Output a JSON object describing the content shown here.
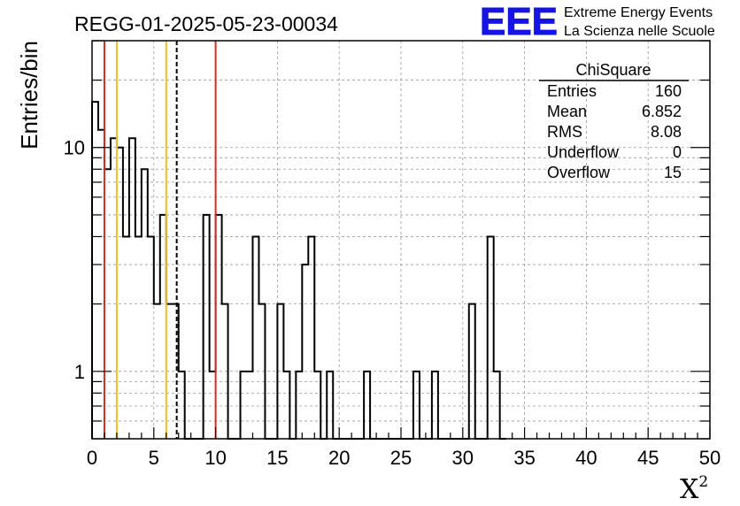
{
  "chart_data": {
    "type": "histogram",
    "title": "REGG-01-2025-05-23-00034",
    "xlabel": "X",
    "xlabel_superscript": "2",
    "ylabel": "Entries/bin",
    "xlim": [
      0,
      50
    ],
    "ylim": [
      0.5,
      30
    ],
    "y_scale": "log",
    "grid": true,
    "bin_width": 0.5,
    "x_ticks": [
      "0",
      "5",
      "10",
      "15",
      "20",
      "25",
      "30",
      "35",
      "40",
      "45",
      "50"
    ],
    "y_ticks": [
      {
        "value": 1,
        "label": "1"
      },
      {
        "value": 10,
        "label": "10"
      }
    ],
    "bins": [
      {
        "x": 0.0,
        "count": 16
      },
      {
        "x": 0.5,
        "count": 12
      },
      {
        "x": 1.0,
        "count": 8
      },
      {
        "x": 1.5,
        "count": 11
      },
      {
        "x": 2.0,
        "count": 10
      },
      {
        "x": 2.5,
        "count": 4
      },
      {
        "x": 3.0,
        "count": 11
      },
      {
        "x": 3.5,
        "count": 4
      },
      {
        "x": 4.0,
        "count": 8
      },
      {
        "x": 4.5,
        "count": 4
      },
      {
        "x": 5.0,
        "count": 2
      },
      {
        "x": 5.5,
        "count": 5
      },
      {
        "x": 6.0,
        "count": 2
      },
      {
        "x": 6.5,
        "count": 2
      },
      {
        "x": 7.0,
        "count": 1
      },
      {
        "x": 7.5,
        "count": 0
      },
      {
        "x": 8.0,
        "count": 0
      },
      {
        "x": 8.5,
        "count": 0
      },
      {
        "x": 9.0,
        "count": 5
      },
      {
        "x": 9.5,
        "count": 1
      },
      {
        "x": 10.0,
        "count": 5
      },
      {
        "x": 10.5,
        "count": 2
      },
      {
        "x": 11.0,
        "count": 0
      },
      {
        "x": 11.5,
        "count": 0
      },
      {
        "x": 12.0,
        "count": 1
      },
      {
        "x": 12.5,
        "count": 1
      },
      {
        "x": 13.0,
        "count": 4
      },
      {
        "x": 13.5,
        "count": 2
      },
      {
        "x": 14.0,
        "count": 0
      },
      {
        "x": 14.5,
        "count": 0
      },
      {
        "x": 15.0,
        "count": 2
      },
      {
        "x": 15.5,
        "count": 1
      },
      {
        "x": 16.0,
        "count": 0
      },
      {
        "x": 16.5,
        "count": 1
      },
      {
        "x": 17.0,
        "count": 3
      },
      {
        "x": 17.5,
        "count": 4
      },
      {
        "x": 18.0,
        "count": 1
      },
      {
        "x": 18.5,
        "count": 0
      },
      {
        "x": 19.0,
        "count": 1
      },
      {
        "x": 19.5,
        "count": 0
      },
      {
        "x": 20.0,
        "count": 0
      },
      {
        "x": 20.5,
        "count": 0
      },
      {
        "x": 21.0,
        "count": 0
      },
      {
        "x": 21.5,
        "count": 0
      },
      {
        "x": 22.0,
        "count": 1
      },
      {
        "x": 22.5,
        "count": 0
      },
      {
        "x": 23.0,
        "count": 0
      },
      {
        "x": 23.5,
        "count": 0
      },
      {
        "x": 24.0,
        "count": 0
      },
      {
        "x": 24.5,
        "count": 0
      },
      {
        "x": 25.0,
        "count": 0
      },
      {
        "x": 25.5,
        "count": 0
      },
      {
        "x": 26.0,
        "count": 1
      },
      {
        "x": 26.5,
        "count": 0
      },
      {
        "x": 27.0,
        "count": 0
      },
      {
        "x": 27.5,
        "count": 1
      },
      {
        "x": 28.0,
        "count": 0
      },
      {
        "x": 28.5,
        "count": 0
      },
      {
        "x": 29.0,
        "count": 0
      },
      {
        "x": 29.5,
        "count": 0
      },
      {
        "x": 30.0,
        "count": 0
      },
      {
        "x": 30.5,
        "count": 2
      },
      {
        "x": 31.0,
        "count": 0
      },
      {
        "x": 31.5,
        "count": 0
      },
      {
        "x": 32.0,
        "count": 4
      },
      {
        "x": 32.5,
        "count": 1
      },
      {
        "x": 33.0,
        "count": 0
      }
    ],
    "reference_lines": [
      {
        "x": 1,
        "color": "#dc2a1e",
        "style": "solid"
      },
      {
        "x": 2,
        "color": "#f2c01c",
        "style": "solid"
      },
      {
        "x": 6,
        "color": "#f2c01c",
        "style": "solid"
      },
      {
        "x": 6.852,
        "color": "#000000",
        "style": "dashed"
      },
      {
        "x": 10,
        "color": "#dc2a1e",
        "style": "solid"
      }
    ],
    "stats_box": {
      "title": "ChiSquare",
      "rows": [
        {
          "label": "Entries",
          "value": "160"
        },
        {
          "label": "Mean",
          "value": "6.852"
        },
        {
          "label": "RMS",
          "value": "8.08"
        },
        {
          "label": "Underflow",
          "value": "0"
        },
        {
          "label": "Overflow",
          "value": "15"
        }
      ]
    }
  },
  "logo": {
    "mark": "EEE",
    "line1": "Extreme Energy Events",
    "line2": "La Scienza nelle Scuole",
    "color": "#1414e6"
  }
}
